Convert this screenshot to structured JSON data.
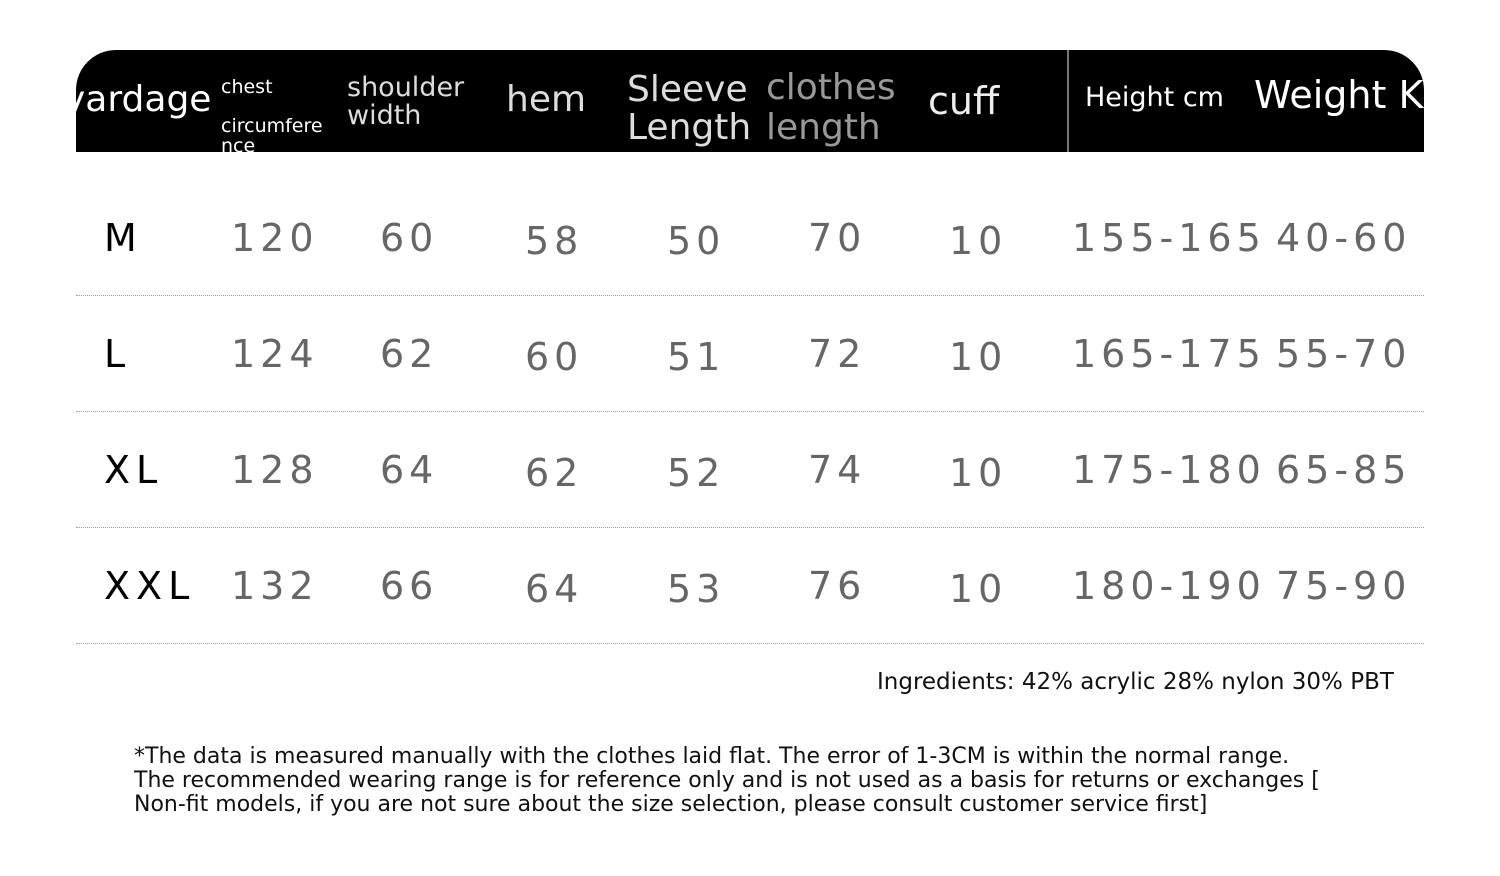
{
  "header": {
    "yardage": "yardage",
    "chest_line1": "chest",
    "chest_line2": "circumfere",
    "chest_line3": "nce",
    "shoulder_line1": "shoulder",
    "shoulder_line2": "width",
    "hem": "hem",
    "sleeve_line1": "Sleeve",
    "sleeve_line2": "Length",
    "clothes_line1": "clothes",
    "clothes_line2": "length",
    "cuff": "cuff",
    "height": "Height cm",
    "weight": "Weight KG"
  },
  "rows": [
    {
      "size": "M",
      "chest": "120",
      "shoulder": "60",
      "hem": "58",
      "sleeve": "50",
      "clothes": "70",
      "cuff": "10",
      "height": "155-165",
      "weight": "40-60"
    },
    {
      "size": "L",
      "chest": "124",
      "shoulder": "62",
      "hem": "60",
      "sleeve": "51",
      "clothes": "72",
      "cuff": "10",
      "height": "165-175",
      "weight": "55-70"
    },
    {
      "size": "XL",
      "chest": "128",
      "shoulder": "64",
      "hem": "62",
      "sleeve": "52",
      "clothes": "74",
      "cuff": "10",
      "height": "175-180",
      "weight": "65-85"
    },
    {
      "size": "XXL",
      "chest": "132",
      "shoulder": "66",
      "hem": "64",
      "sleeve": "53",
      "clothes": "76",
      "cuff": "10",
      "height": "180-190",
      "weight": "75-90"
    }
  ],
  "ingredients": "Ingredients: 42% acrylic 28% nylon 30% PBT",
  "note": [
    "*The data is measured manually with the clothes laid flat. The error of 1-3CM is within the normal range.",
    "The recommended wearing range is for reference only and is not used as a basis for returns or exchanges [",
    "Non-fit models, if you are not sure about the size selection, please consult customer service first]"
  ]
}
